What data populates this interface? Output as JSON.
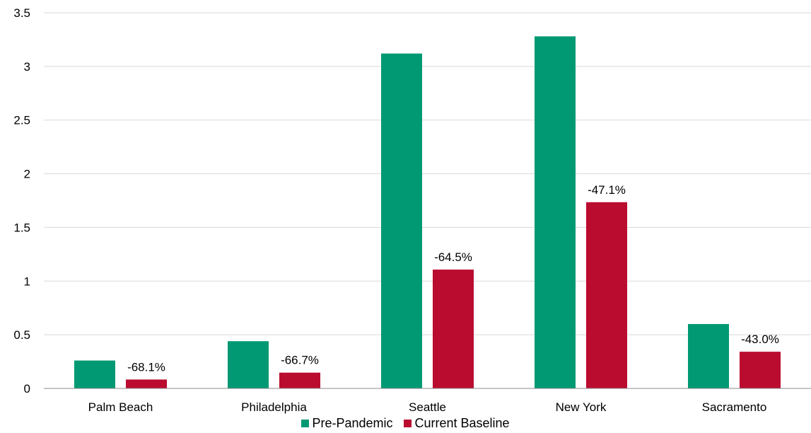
{
  "chart_data": {
    "type": "bar",
    "categories": [
      "Palm Beach",
      "Philadelphia",
      "Seattle",
      "New York",
      "Sacramento"
    ],
    "series": [
      {
        "name": "Pre-Pandemic",
        "color": "#009973",
        "values": [
          0.26,
          0.44,
          3.12,
          3.28,
          0.6
        ]
      },
      {
        "name": "Current Baseline",
        "color": "#BA0C2F",
        "values": [
          0.083,
          0.147,
          1.107,
          1.735,
          0.342
        ],
        "labels": [
          "-68.1%",
          "-66.7%",
          "-64.5%",
          "-47.1%",
          "-43.0%"
        ]
      }
    ],
    "ylim": [
      0,
      3.5
    ],
    "yticks": [
      "0",
      "0.5",
      "1",
      "1.5",
      "2",
      "2.5",
      "3",
      "3.5"
    ],
    "grid": true,
    "legend_position": "bottom"
  }
}
